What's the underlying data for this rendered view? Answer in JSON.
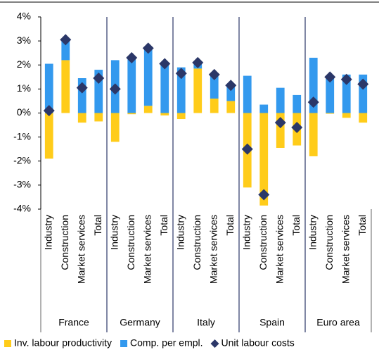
{
  "chart_data": {
    "type": "bar",
    "groups": [
      "France",
      "Germany",
      "Italy",
      "Spain",
      "Euro area"
    ],
    "categories": [
      "Industry",
      "Construction",
      "Market services",
      "Total",
      "Industry",
      "Construction",
      "Market services",
      "Total",
      "Industry",
      "Construction",
      "Market services",
      "Total",
      "Industry",
      "Construction",
      "Market services",
      "Total",
      "Industry",
      "Construction",
      "Market services",
      "Total"
    ],
    "series": [
      {
        "name": "Inv. labour productivity",
        "color": "#ffcc1a",
        "type": "bar",
        "values": [
          -1.9,
          2.2,
          -0.4,
          -0.35,
          -1.2,
          -0.05,
          0.3,
          -0.1,
          -0.25,
          1.85,
          0.6,
          0.5,
          -3.1,
          -3.85,
          -1.45,
          -1.35,
          -1.8,
          -0.03,
          -0.2,
          -0.4
        ]
      },
      {
        "name": "Comp. per empl.",
        "color": "#3399ee",
        "type": "bar",
        "values": [
          2.05,
          0.9,
          1.45,
          1.8,
          2.2,
          2.35,
          2.4,
          2.1,
          1.9,
          0.25,
          1.0,
          0.6,
          1.55,
          0.35,
          1.05,
          0.75,
          2.3,
          1.5,
          1.6,
          1.6
        ]
      },
      {
        "name": "Unit labour costs",
        "color": "#2b3768",
        "type": "scatter",
        "values": [
          0.1,
          3.05,
          1.05,
          1.45,
          1.0,
          2.3,
          2.7,
          2.05,
          1.65,
          2.1,
          1.6,
          1.15,
          -1.5,
          -3.4,
          -0.4,
          -0.6,
          0.45,
          1.5,
          1.4,
          1.2
        ]
      }
    ],
    "ylim": [
      -4,
      4
    ],
    "yticks": [
      {
        "value": -4,
        "label": "-4%"
      },
      {
        "value": -3,
        "label": "-3%"
      },
      {
        "value": -2,
        "label": "-2%"
      },
      {
        "value": -1,
        "label": "-1%"
      },
      {
        "value": 0,
        "label": "0%"
      },
      {
        "value": 1,
        "label": "1%"
      },
      {
        "value": 2,
        "label": "2%"
      },
      {
        "value": 3,
        "label": "3%"
      },
      {
        "value": 4,
        "label": "4%"
      }
    ],
    "grid": false
  }
}
